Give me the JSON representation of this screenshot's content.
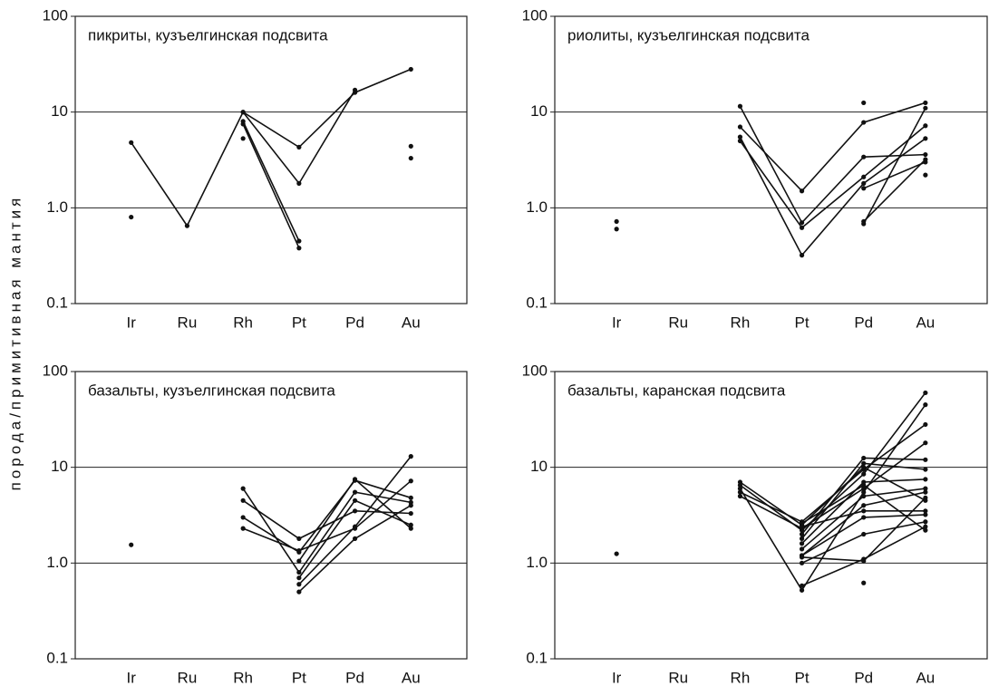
{
  "chart_data": [
    {
      "type": "line",
      "title": "пикриты,  кузъелгинская подсвита",
      "ylabel": "порода/примитивная мантия",
      "categories": [
        "Ir",
        "Ru",
        "Rh",
        "Pt",
        "Pd",
        "Au"
      ],
      "log_scale": true,
      "grid": true,
      "color": "#111111",
      "ylim": [
        0.1,
        100
      ],
      "yticks": [
        0.1,
        {
          "value": 1,
          "label": "1.0"
        },
        10,
        100
      ],
      "series": [
        {
          "values": [
            4.8,
            0.65,
            10,
            4.3,
            16,
            28
          ]
        },
        {
          "values": [
            null,
            null,
            10,
            1.8,
            17,
            null
          ]
        },
        {
          "values": [
            null,
            null,
            8,
            0.45,
            null,
            null
          ]
        },
        {
          "values": [
            null,
            null,
            7.5,
            0.38,
            null,
            null
          ]
        },
        {
          "values": [
            0.8,
            null,
            5.3,
            null,
            null,
            4.4
          ]
        },
        {
          "values": [
            null,
            null,
            null,
            null,
            null,
            3.3
          ]
        }
      ]
    },
    {
      "type": "line",
      "title": "риолиты, кузъелгинская подсвита",
      "categories": [
        "Ir",
        "Ru",
        "Rh",
        "Pt",
        "Pd",
        "Au"
      ],
      "log_scale": true,
      "grid": true,
      "color": "#111111",
      "ylim": [
        0.1,
        100
      ],
      "yticks": [
        0.1,
        {
          "value": 1,
          "label": "1.0"
        },
        10,
        100
      ],
      "series": [
        {
          "values": [
            null,
            null,
            11.5,
            0.7,
            3.4,
            3.6
          ]
        },
        {
          "values": [
            null,
            null,
            7,
            1.5,
            7.8,
            12.5
          ]
        },
        {
          "values": [
            null,
            null,
            5.5,
            0.32,
            1.8,
            5.3
          ]
        },
        {
          "values": [
            null,
            null,
            5,
            0.62,
            2.1,
            7.2
          ]
        },
        {
          "values": [
            null,
            null,
            null,
            null,
            0.68,
            11
          ]
        },
        {
          "values": [
            null,
            null,
            null,
            null,
            0.72,
            3.2
          ]
        },
        {
          "values": [
            null,
            null,
            null,
            null,
            1.6,
            3.0
          ]
        },
        {
          "values": [
            0.72,
            null,
            null,
            null,
            12.5,
            null
          ]
        },
        {
          "values": [
            0.6,
            null,
            null,
            null,
            null,
            2.2
          ]
        }
      ]
    },
    {
      "type": "line",
      "title": "базальты, кузъелгинская подсвита",
      "categories": [
        "Ir",
        "Ru",
        "Rh",
        "Pt",
        "Pd",
        "Au"
      ],
      "log_scale": true,
      "grid": true,
      "color": "#111111",
      "ylim": [
        0.1,
        100
      ],
      "yticks": [
        0.1,
        {
          "value": 1,
          "label": "1.0"
        },
        10,
        100
      ],
      "series": [
        {
          "values": [
            null,
            null,
            6,
            0.8,
            5.5,
            4.3
          ]
        },
        {
          "values": [
            null,
            null,
            4.5,
            1.8,
            3.5,
            3.3
          ]
        },
        {
          "values": [
            null,
            null,
            3,
            1.3,
            7.3,
            4.8
          ]
        },
        {
          "values": [
            null,
            null,
            2.3,
            1.35,
            2.3,
            7.2
          ]
        },
        {
          "values": [
            null,
            null,
            null,
            0.7,
            4.5,
            2.5
          ]
        },
        {
          "values": [
            null,
            null,
            null,
            0.6,
            2.4,
            13
          ]
        },
        {
          "values": [
            null,
            null,
            null,
            0.5,
            1.8,
            4
          ]
        },
        {
          "values": [
            null,
            null,
            null,
            1.05,
            7.5,
            2.3
          ]
        },
        {
          "values": [
            1.55,
            null,
            null,
            null,
            null,
            null
          ]
        }
      ]
    },
    {
      "type": "line",
      "title": "базальты, каранская подсвита",
      "categories": [
        "Ir",
        "Ru",
        "Rh",
        "Pt",
        "Pd",
        "Au"
      ],
      "log_scale": true,
      "grid": true,
      "color": "#111111",
      "ylim": [
        0.1,
        100
      ],
      "yticks": [
        0.1,
        {
          "value": 1,
          "label": "1.0"
        },
        10,
        100
      ],
      "series": [
        {
          "values": [
            null,
            null,
            7,
            2.5,
            10,
            4.5
          ]
        },
        {
          "values": [
            null,
            null,
            6.5,
            2.2,
            8.5,
            60
          ]
        },
        {
          "values": [
            null,
            null,
            6,
            0.52,
            5.5,
            45
          ]
        },
        {
          "values": [
            null,
            null,
            5.5,
            2.7,
            9.5,
            28
          ]
        },
        {
          "values": [
            null,
            null,
            5,
            2.3,
            6,
            18
          ]
        },
        {
          "values": [
            null,
            null,
            null,
            2.0,
            12.5,
            12
          ]
        },
        {
          "values": [
            null,
            null,
            null,
            1.8,
            11,
            9.5
          ]
        },
        {
          "values": [
            null,
            null,
            null,
            1.6,
            7,
            7.5
          ]
        },
        {
          "values": [
            null,
            null,
            null,
            1.4,
            5,
            6
          ]
        },
        {
          "values": [
            null,
            null,
            null,
            1.2,
            4,
            5.5
          ]
        },
        {
          "values": [
            null,
            null,
            null,
            1.2,
            3,
            3.2
          ]
        },
        {
          "values": [
            null,
            null,
            null,
            1.0,
            2,
            2.7
          ]
        },
        {
          "values": [
            null,
            null,
            null,
            0.58,
            1.1,
            2.4
          ]
        },
        {
          "values": [
            null,
            null,
            null,
            2.6,
            6.5,
            2.2
          ]
        },
        {
          "values": [
            null,
            null,
            null,
            2.4,
            3.5,
            3.5
          ]
        },
        {
          "values": [
            null,
            null,
            null,
            1.15,
            1.05,
            4.8
          ]
        },
        {
          "values": [
            1.25,
            null,
            null,
            null,
            0.62,
            null
          ]
        }
      ]
    }
  ]
}
